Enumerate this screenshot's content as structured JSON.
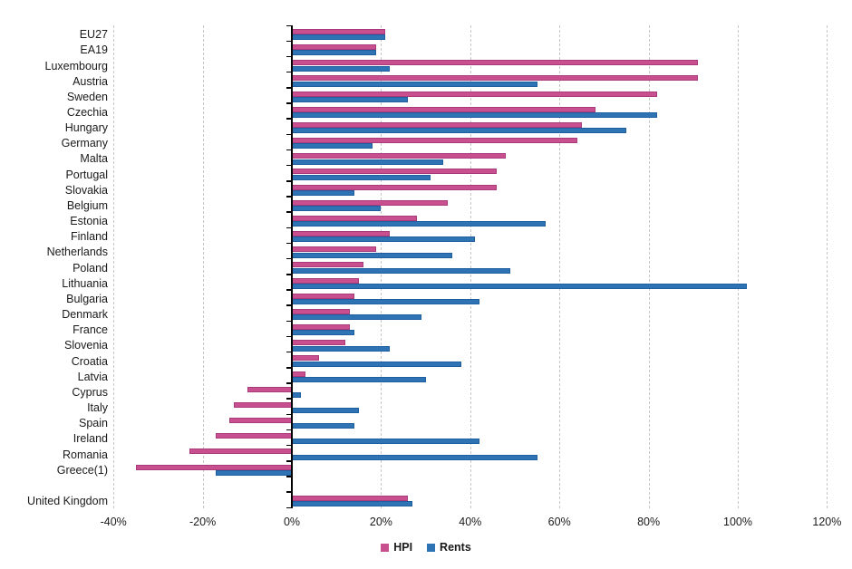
{
  "chart_data": {
    "type": "bar",
    "orientation": "horizontal",
    "title": "",
    "xlabel": "",
    "ylabel": "",
    "units": "%",
    "xlim": [
      -40,
      120
    ],
    "x_ticks": [
      -40,
      -20,
      0,
      20,
      40,
      60,
      80,
      100,
      120
    ],
    "x_tick_labels": [
      "-40%",
      "-20%",
      "0%",
      "20%",
      "40%",
      "60%",
      "80%",
      "100%",
      "120%"
    ],
    "grid": "vertical-dashed",
    "legend_position": "bottom-center",
    "gap_before_category": "United Kingdom",
    "categories": [
      "EU27",
      "EA19",
      "Luxembourg",
      "Austria",
      "Sweden",
      "Czechia",
      "Hungary",
      "Germany",
      "Malta",
      "Portugal",
      "Slovakia",
      "Belgium",
      "Estonia",
      "Finland",
      "Netherlands",
      "Poland",
      "Lithuania",
      "Bulgaria",
      "Denmark",
      "France",
      "Slovenia",
      "Croatia",
      "Latvia",
      "Cyprus",
      "Italy",
      "Spain",
      "Ireland",
      "Romania",
      "Greece(1)",
      "United Kingdom"
    ],
    "series": [
      {
        "name": "HPI",
        "color": "#C9508F",
        "border_color": "#A93A7B",
        "values": [
          21,
          19,
          91,
          91,
          82,
          68,
          65,
          64,
          48,
          46,
          46,
          35,
          28,
          22,
          19,
          16,
          15,
          14,
          13,
          13,
          12,
          6,
          3,
          -10,
          -13,
          -14,
          -17,
          -23,
          -35,
          26
        ]
      },
      {
        "name": "Rents",
        "color": "#2E74B5",
        "border_color": "#1F5FA0",
        "values": [
          21,
          19,
          22,
          55,
          26,
          82,
          75,
          18,
          34,
          31,
          14,
          20,
          57,
          41,
          36,
          49,
          102,
          42,
          29,
          14,
          22,
          38,
          30,
          2,
          15,
          14,
          42,
          55,
          -17,
          27
        ]
      }
    ]
  },
  "colors": {
    "background": "#ffffff",
    "axis": "#000000",
    "gridline": "#c6c6c6",
    "text": "#1a1a1a"
  }
}
